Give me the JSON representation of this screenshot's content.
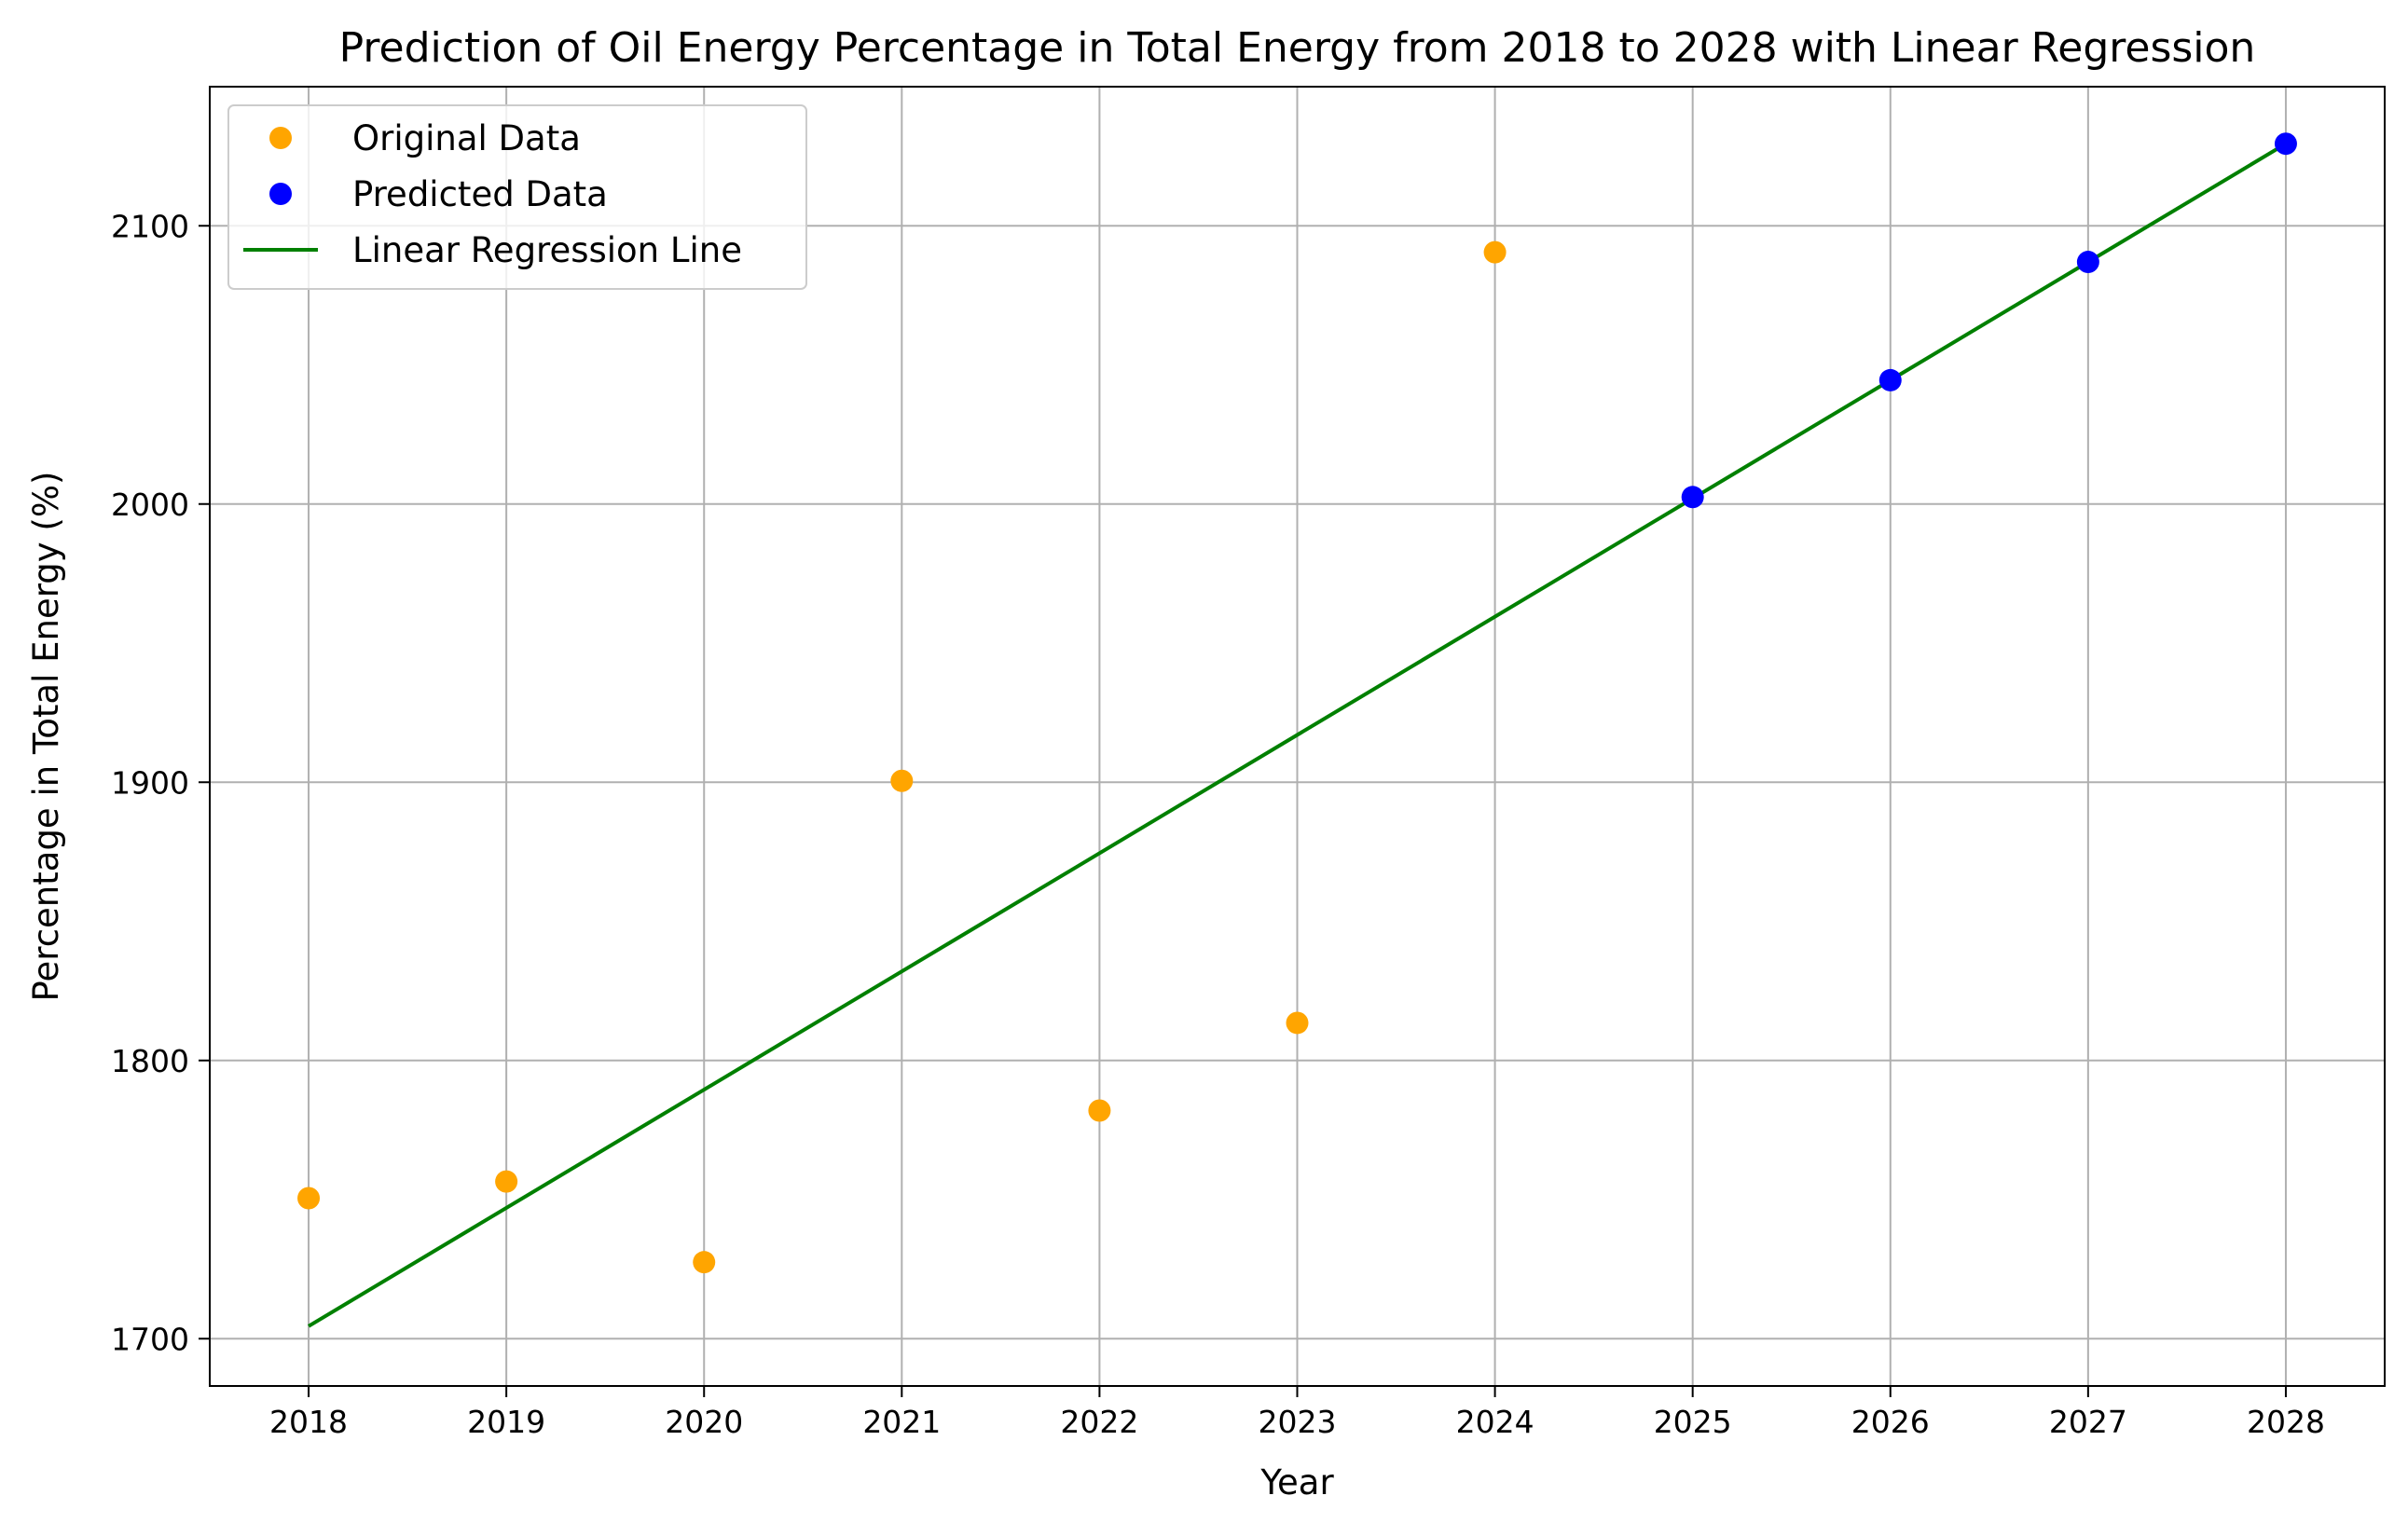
{
  "chart_data": {
    "type": "scatter",
    "title": "Prediction of Oil Energy Percentage in Total Energy from 2018 to 2028 with Linear Regression",
    "xlabel": "Year",
    "ylabel": "Percentage in Total Energy (%)",
    "xlim": [
      2017.5,
      2028.5
    ],
    "ylim": [
      1683,
      2150
    ],
    "x_ticks": [
      2018,
      2019,
      2020,
      2021,
      2022,
      2023,
      2024,
      2025,
      2026,
      2027,
      2028
    ],
    "y_ticks": [
      1700,
      1800,
      1900,
      2000,
      2100
    ],
    "grid": true,
    "legend_position": "top-left",
    "series": [
      {
        "name": "Original Data",
        "kind": "points",
        "color": "#ffa500",
        "points": [
          {
            "x": 2018,
            "y": 1750.5
          },
          {
            "x": 2019,
            "y": 1756.5
          },
          {
            "x": 2020,
            "y": 1727.5
          },
          {
            "x": 2021,
            "y": 1900.5
          },
          {
            "x": 2022,
            "y": 1782.0
          },
          {
            "x": 2023,
            "y": 1813.5
          },
          {
            "x": 2024,
            "y": 2090.5
          }
        ]
      },
      {
        "name": "Predicted Data",
        "kind": "points",
        "color": "#0000ff",
        "points": [
          {
            "x": 2025,
            "y": 2002.5
          },
          {
            "x": 2026,
            "y": 2044.5
          },
          {
            "x": 2027,
            "y": 2087.0
          },
          {
            "x": 2028,
            "y": 2129.5
          }
        ]
      },
      {
        "name": "Linear Regression Line",
        "kind": "line",
        "color": "#008000",
        "points": [
          {
            "x": 2018,
            "y": 1704.5
          },
          {
            "x": 2028,
            "y": 2129.5
          }
        ]
      }
    ]
  }
}
